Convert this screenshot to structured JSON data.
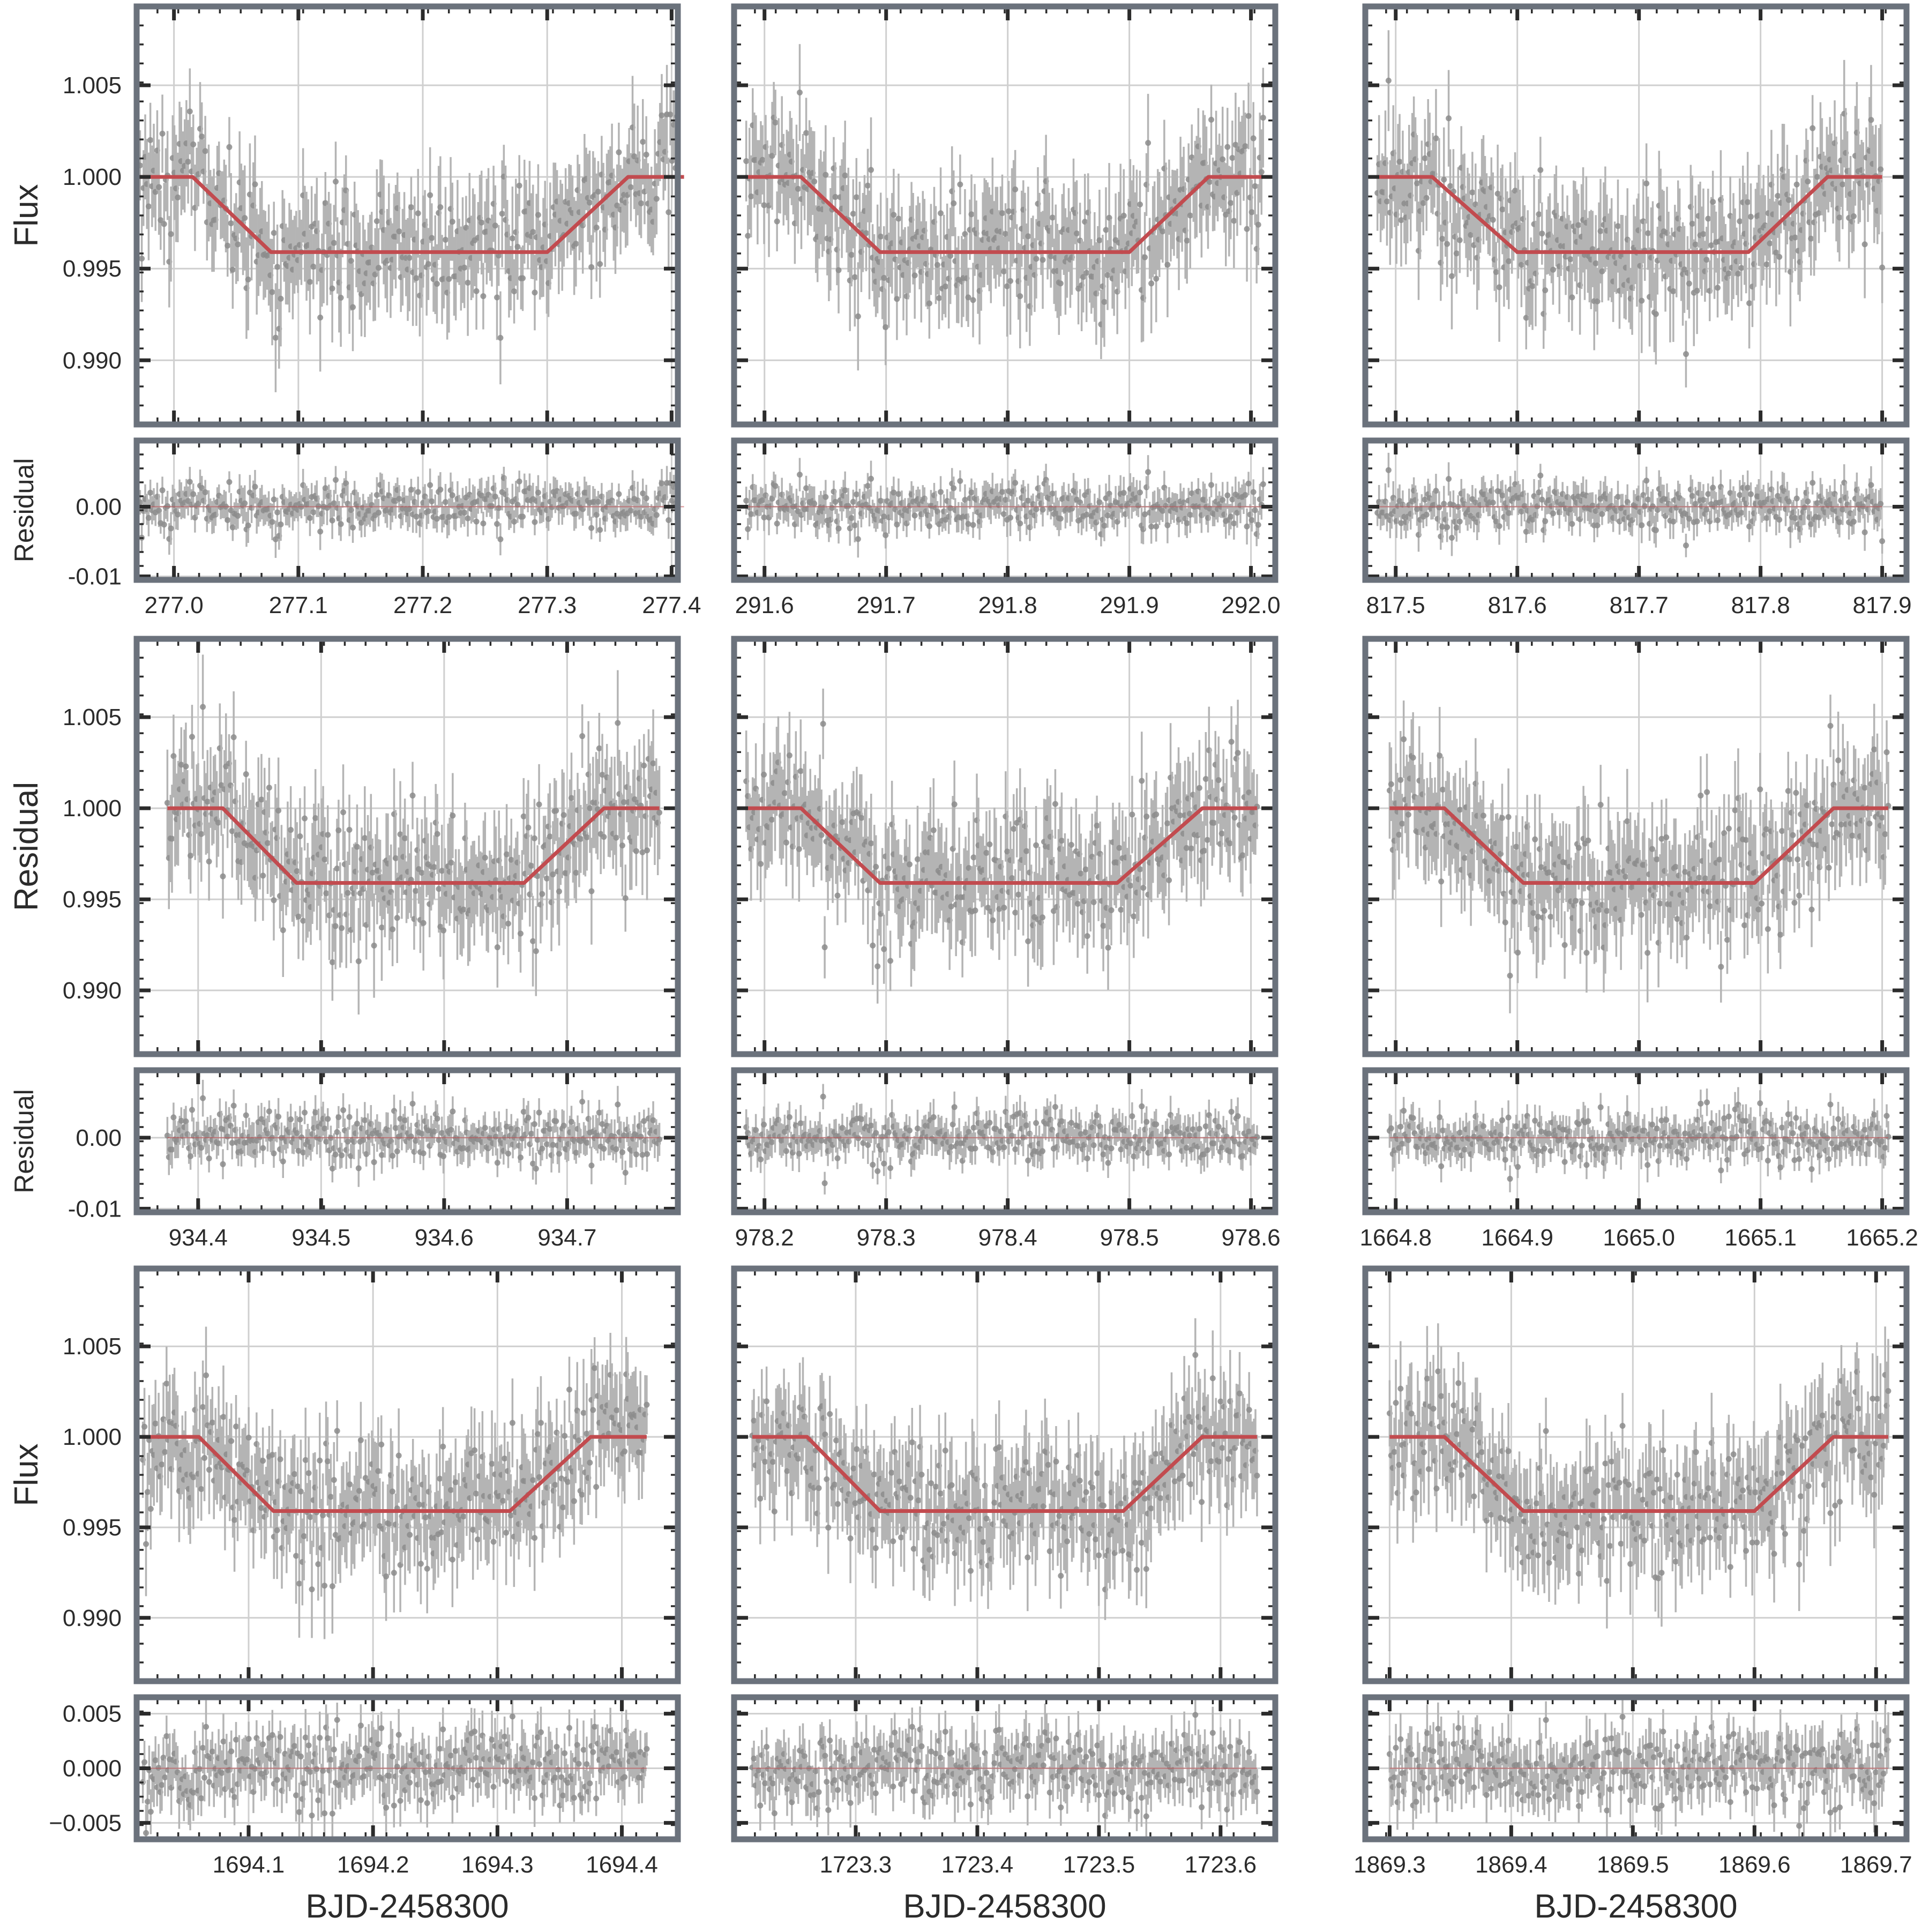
{
  "figure": {
    "colors": {
      "frame": "#6b727c",
      "grid": "#cfcfcf",
      "model": "#c24b4f",
      "data": "#8c8c8c",
      "errorbar": "#b4b4b4",
      "tick": "#2b2b2b"
    },
    "rows": [
      {
        "flux_ylabel": "Flux",
        "residual_ylabel": "Residual",
        "xlabel": ""
      },
      {
        "flux_ylabel": "Residual",
        "residual_ylabel": "Residual",
        "xlabel": ""
      },
      {
        "flux_ylabel": "Flux",
        "residual_ylabel": "",
        "xlabel": "BJD-2458300"
      }
    ]
  },
  "chart_data": [
    {
      "type": "scatter",
      "panel": "flux",
      "row": 0,
      "col": 0,
      "xlim": [
        276.97,
        277.405
      ],
      "ylim": [
        0.9865,
        1.0093
      ],
      "xticks": [
        "277.0",
        "277.1",
        "277.2",
        "277.3",
        "277.4"
      ],
      "yticks": [
        "0.990",
        "0.995",
        "1.000",
        "1.005"
      ],
      "model": {
        "baseline": 1.0,
        "depth": 0.0041,
        "t1": 277.015,
        "t2": 277.078,
        "t3": 277.3,
        "t4": 277.365
      }
    },
    {
      "type": "scatter",
      "panel": "residual",
      "row": 0,
      "col": 0,
      "xlim": [
        276.97,
        277.405
      ],
      "ylim": [
        -0.0105,
        0.0095
      ],
      "xticks": [
        "277.0",
        "277.1",
        "277.2",
        "277.3",
        "277.4"
      ],
      "yticks": [
        "-0.01",
        "0.00"
      ]
    },
    {
      "type": "scatter",
      "panel": "flux",
      "row": 0,
      "col": 1,
      "xlim": [
        291.575,
        292.02
      ],
      "ylim": [
        0.9865,
        1.0093
      ],
      "xticks": [
        "291.6",
        "291.7",
        "291.8",
        "291.9",
        "292.0"
      ],
      "yticks": [],
      "model": {
        "baseline": 1.0,
        "depth": 0.0041,
        "t1": 291.63,
        "t2": 291.695,
        "t3": 291.9,
        "t4": 291.965
      }
    },
    {
      "type": "scatter",
      "panel": "residual",
      "row": 0,
      "col": 1,
      "xlim": [
        291.575,
        292.02
      ],
      "ylim": [
        -0.0105,
        0.0095
      ],
      "xticks": [
        "291.6",
        "291.7",
        "291.8",
        "291.9",
        "292.0"
      ],
      "yticks": []
    },
    {
      "type": "scatter",
      "panel": "flux",
      "row": 0,
      "col": 2,
      "xlim": [
        817.475,
        817.92
      ],
      "ylim": [
        0.9865,
        1.0093
      ],
      "xticks": [
        "817.5",
        "817.6",
        "817.7",
        "817.8",
        "817.9"
      ],
      "yticks": [],
      "model": {
        "baseline": 1.0,
        "depth": 0.0041,
        "t1": 817.53,
        "t2": 817.6,
        "t3": 817.79,
        "t4": 817.855
      }
    },
    {
      "type": "scatter",
      "panel": "residual",
      "row": 0,
      "col": 2,
      "xlim": [
        817.475,
        817.92
      ],
      "ylim": [
        -0.0105,
        0.0095
      ],
      "xticks": [
        "817.5",
        "817.6",
        "817.7",
        "817.8",
        "817.9"
      ],
      "yticks": []
    },
    {
      "type": "scatter",
      "panel": "flux",
      "row": 1,
      "col": 0,
      "xlim": [
        934.35,
        934.79
      ],
      "ylim": [
        0.9865,
        1.0093
      ],
      "xticks": [
        "934.4",
        "934.5",
        "934.6",
        "934.7"
      ],
      "yticks": [
        "0.990",
        "0.995",
        "1.000",
        "1.005"
      ],
      "model": {
        "baseline": 1.0,
        "depth": 0.0041,
        "t1": 934.42,
        "t2": 934.48,
        "t3": 934.665,
        "t4": 934.73
      }
    },
    {
      "type": "scatter",
      "panel": "residual",
      "row": 1,
      "col": 0,
      "xlim": [
        934.35,
        934.79
      ],
      "ylim": [
        -0.0105,
        0.0095
      ],
      "xticks": [
        "934.4",
        "934.5",
        "934.6",
        "934.7"
      ],
      "yticks": [
        "-0.01",
        "0.00"
      ]
    },
    {
      "type": "scatter",
      "panel": "flux",
      "row": 1,
      "col": 1,
      "xlim": [
        978.175,
        978.62
      ],
      "ylim": [
        0.9865,
        1.0093
      ],
      "xticks": [
        "978.2",
        "978.3",
        "978.4",
        "978.5",
        "978.6"
      ],
      "yticks": [],
      "model": {
        "baseline": 1.0,
        "depth": 0.0041,
        "t1": 978.23,
        "t2": 978.295,
        "t3": 978.49,
        "t4": 978.56
      }
    },
    {
      "type": "scatter",
      "panel": "residual",
      "row": 1,
      "col": 1,
      "xlim": [
        978.175,
        978.62
      ],
      "ylim": [
        -0.0105,
        0.0095
      ],
      "xticks": [
        "978.2",
        "978.3",
        "978.4",
        "978.5",
        "978.6"
      ],
      "yticks": []
    },
    {
      "type": "scatter",
      "panel": "flux",
      "row": 1,
      "col": 2,
      "xlim": [
        1664.775,
        1665.22
      ],
      "ylim": [
        0.9865,
        1.0093
      ],
      "xticks": [
        "1664.8",
        "1664.9",
        "1665.0",
        "1665.1",
        "1665.2"
      ],
      "yticks": [],
      "model": {
        "baseline": 1.0,
        "depth": 0.0041,
        "t1": 1664.84,
        "t2": 1664.905,
        "t3": 1665.095,
        "t4": 1665.16
      }
    },
    {
      "type": "scatter",
      "panel": "residual",
      "row": 1,
      "col": 2,
      "xlim": [
        1664.775,
        1665.22
      ],
      "ylim": [
        -0.0105,
        0.0095
      ],
      "xticks": [
        "1664.8",
        "1664.9",
        "1665.0",
        "1665.1",
        "1665.2"
      ],
      "yticks": []
    },
    {
      "type": "scatter",
      "panel": "flux",
      "row": 2,
      "col": 0,
      "xlim": [
        1694.01,
        1694.445
      ],
      "ylim": [
        0.9865,
        1.0093
      ],
      "xticks": [
        "1694.1",
        "1694.2",
        "1694.3",
        "1694.4"
      ],
      "yticks": [
        "0.990",
        "0.995",
        "1.000",
        "1.005"
      ],
      "model": {
        "baseline": 1.0,
        "depth": 0.0041,
        "t1": 1694.06,
        "t2": 1694.12,
        "t3": 1694.31,
        "t4": 1694.375
      }
    },
    {
      "type": "scatter",
      "panel": "residual",
      "row": 2,
      "col": 0,
      "xlim": [
        1694.01,
        1694.445
      ],
      "ylim": [
        -0.0065,
        0.0065
      ],
      "xticks": [
        "1694.1",
        "1694.2",
        "1694.3",
        "1694.4"
      ],
      "yticks": [
        "−0.005",
        "0.000",
        "0.005"
      ]
    },
    {
      "type": "scatter",
      "panel": "flux",
      "row": 2,
      "col": 1,
      "xlim": [
        1723.2,
        1723.645
      ],
      "ylim": [
        0.9865,
        1.0093
      ],
      "xticks": [
        "1723.3",
        "1723.4",
        "1723.5",
        "1723.6"
      ],
      "yticks": [],
      "model": {
        "baseline": 1.0,
        "depth": 0.0041,
        "t1": 1723.26,
        "t2": 1723.32,
        "t3": 1723.52,
        "t4": 1723.585
      }
    },
    {
      "type": "scatter",
      "panel": "residual",
      "row": 2,
      "col": 1,
      "xlim": [
        1723.2,
        1723.645
      ],
      "ylim": [
        -0.0065,
        0.0065
      ],
      "xticks": [
        "1723.3",
        "1723.4",
        "1723.5",
        "1723.6"
      ],
      "yticks": []
    },
    {
      "type": "scatter",
      "panel": "flux",
      "row": 2,
      "col": 2,
      "xlim": [
        1869.28,
        1869.725
      ],
      "ylim": [
        0.9865,
        1.0093
      ],
      "xticks": [
        "1869.3",
        "1869.4",
        "1869.5",
        "1869.6",
        "1869.7"
      ],
      "yticks": [],
      "model": {
        "baseline": 1.0,
        "depth": 0.0041,
        "t1": 1869.345,
        "t2": 1869.41,
        "t3": 1869.6,
        "t4": 1869.665
      }
    },
    {
      "type": "scatter",
      "panel": "residual",
      "row": 2,
      "col": 2,
      "xlim": [
        1869.28,
        1869.725
      ],
      "ylim": [
        -0.0065,
        0.0065
      ],
      "xticks": [
        "1869.3",
        "1869.4",
        "1869.5",
        "1869.6",
        "1869.7"
      ],
      "yticks": []
    }
  ]
}
